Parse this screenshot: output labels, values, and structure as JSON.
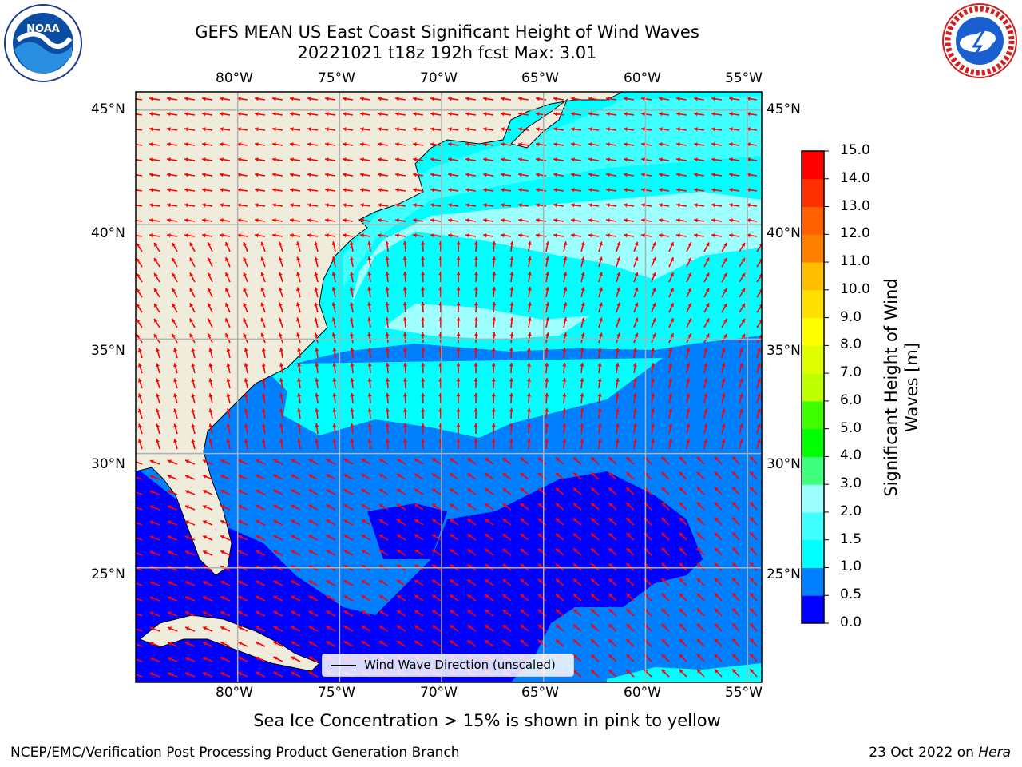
{
  "header": {
    "title_line1": "GEFS MEAN US East Coast Significant Height of Wind Waves",
    "title_line2": "20221021 t18z 192h fcst   Max: 3.01"
  },
  "map": {
    "lon_labels": [
      "80°W",
      "75°W",
      "70°W",
      "65°W",
      "60°W",
      "55°W"
    ],
    "lat_labels": [
      "45°N",
      "40°N",
      "35°N",
      "30°N",
      "25°N"
    ],
    "lon_range": [
      -85,
      -54.3
    ],
    "lat_range": [
      20,
      45.8
    ]
  },
  "legend": {
    "label": "Wind Wave Direction (unscaled)"
  },
  "colorbar": {
    "title_line1": "Significant Height of Wind",
    "title_line2": "Waves [m]",
    "ticks": [
      "0.0",
      "0.5",
      "1.0",
      "1.5",
      "2.0",
      "3.0",
      "4.0",
      "5.0",
      "6.0",
      "7.0",
      "8.0",
      "9.0",
      "10.0",
      "11.0",
      "12.0",
      "13.0",
      "14.0",
      "15.0"
    ],
    "colors": [
      "#0000ff",
      "#0080ff",
      "#00ffff",
      "#40ffff",
      "#9effff",
      "#40ff80",
      "#00ff00",
      "#40ff00",
      "#bfff00",
      "#dfff00",
      "#ffff00",
      "#ffdf00",
      "#ffbf00",
      "#ff8000",
      "#ff6000",
      "#ff3000",
      "#ff0000"
    ]
  },
  "caption": "Sea Ice Concentration > 15% is shown in pink to yellow",
  "footer": {
    "left": "NCEP/EMC/Verification Post Processing Product Generation Branch",
    "right_prefix": "23 Oct 2022 on ",
    "right_host": "Hera"
  },
  "logos": {
    "noaa_text": "NOAA",
    "nws_text": "NATIONAL WEATHER SERVICE"
  },
  "colors": {
    "land": "#efecdc",
    "arrow": "#ff0000",
    "grid": "#b0b0b0"
  }
}
